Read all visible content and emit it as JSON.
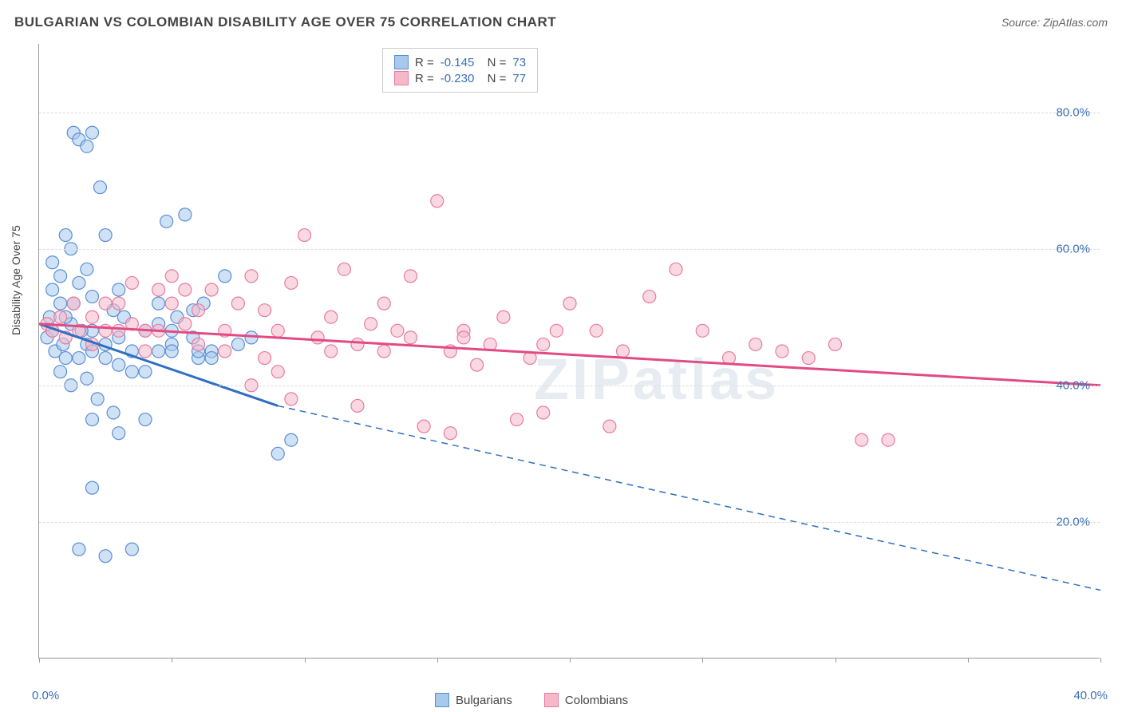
{
  "title": "BULGARIAN VS COLOMBIAN DISABILITY AGE OVER 75 CORRELATION CHART",
  "source": "Source: ZipAtlas.com",
  "watermark": "ZIPatlas",
  "chart": {
    "type": "scatter",
    "ylabel": "Disability Age Over 75",
    "xlim": [
      0,
      40
    ],
    "ylim": [
      0,
      90
    ],
    "yticks": [
      20,
      40,
      60,
      80
    ],
    "ytick_labels": [
      "20.0%",
      "40.0%",
      "60.0%",
      "80.0%"
    ],
    "xtick_positions": [
      0,
      5,
      10,
      15,
      20,
      25,
      30,
      35,
      40
    ],
    "x_axis_labels": {
      "left": "0.0%",
      "right": "40.0%"
    },
    "background_color": "#ffffff",
    "grid_color": "#dddddd",
    "axis_color": "#999999",
    "axis_label_color": "#3b6fb6",
    "marker_radius": 8,
    "marker_opacity": 0.55,
    "series": [
      {
        "name": "Bulgarians",
        "fill": "#a8c8ec",
        "stroke": "#5a8fd4",
        "line_color": "#2f6fc2",
        "R": "-0.145",
        "N": "73",
        "trend": {
          "x1": 0,
          "y1": 49,
          "x2_solid": 9,
          "y2_solid": 37,
          "x2": 40,
          "y2": 10
        },
        "points": [
          [
            0.3,
            47
          ],
          [
            0.4,
            50
          ],
          [
            0.5,
            48
          ],
          [
            0.6,
            45
          ],
          [
            0.8,
            52
          ],
          [
            0.9,
            46
          ],
          [
            1.0,
            44
          ],
          [
            1.2,
            49
          ],
          [
            1.3,
            77
          ],
          [
            1.5,
            76
          ],
          [
            1.8,
            75
          ],
          [
            2.0,
            77
          ],
          [
            1.0,
            62
          ],
          [
            2.3,
            69
          ],
          [
            2.8,
            51
          ],
          [
            3.0,
            47
          ],
          [
            1.5,
            55
          ],
          [
            2.0,
            53
          ],
          [
            2.5,
            44
          ],
          [
            3.2,
            50
          ],
          [
            3.5,
            42
          ],
          [
            4.0,
            48
          ],
          [
            4.5,
            45
          ],
          [
            5.0,
            46
          ],
          [
            1.8,
            41
          ],
          [
            2.2,
            38
          ],
          [
            2.8,
            36
          ],
          [
            5.5,
            65
          ],
          [
            5.8,
            51
          ],
          [
            6.0,
            44
          ],
          [
            6.5,
            45
          ],
          [
            7.0,
            56
          ],
          [
            0.5,
            54
          ],
          [
            0.8,
            42
          ],
          [
            1.2,
            40
          ],
          [
            1.5,
            44
          ],
          [
            1.8,
            46
          ],
          [
            2.0,
            48
          ],
          [
            2.5,
            46
          ],
          [
            3.0,
            43
          ],
          [
            3.5,
            45
          ],
          [
            4.0,
            42
          ],
          [
            1.2,
            60
          ],
          [
            1.8,
            57
          ],
          [
            2.5,
            62
          ],
          [
            3.0,
            54
          ],
          [
            4.5,
            52
          ],
          [
            5.0,
            48
          ],
          [
            1.5,
            16
          ],
          [
            2.5,
            15
          ],
          [
            3.5,
            16
          ],
          [
            2.0,
            25
          ],
          [
            4.5,
            49
          ],
          [
            5.2,
            50
          ],
          [
            5.8,
            47
          ],
          [
            6.5,
            44
          ],
          [
            2.0,
            35
          ],
          [
            3.0,
            33
          ],
          [
            4.0,
            35
          ],
          [
            5.0,
            45
          ],
          [
            6.0,
            45
          ],
          [
            9.0,
            30
          ],
          [
            9.5,
            32
          ],
          [
            8.0,
            47
          ],
          [
            0.5,
            58
          ],
          [
            0.8,
            56
          ],
          [
            1.0,
            50
          ],
          [
            1.3,
            52
          ],
          [
            1.6,
            48
          ],
          [
            4.8,
            64
          ],
          [
            6.2,
            52
          ],
          [
            7.5,
            46
          ],
          [
            2.0,
            45
          ]
        ]
      },
      {
        "name": "Colombians",
        "fill": "#f5b8c9",
        "stroke": "#e77ba0",
        "line_color": "#e24a84",
        "R": "-0.230",
        "N": "77",
        "trend": {
          "x1": 0,
          "y1": 49,
          "x2_solid": 40,
          "y2_solid": 40,
          "x2": 40,
          "y2": 40
        },
        "points": [
          [
            0.3,
            49
          ],
          [
            0.5,
            48
          ],
          [
            0.8,
            50
          ],
          [
            1.0,
            47
          ],
          [
            1.3,
            52
          ],
          [
            1.5,
            48
          ],
          [
            2.0,
            50
          ],
          [
            2.5,
            48
          ],
          [
            3.0,
            52
          ],
          [
            3.5,
            55
          ],
          [
            4.0,
            48
          ],
          [
            4.5,
            54
          ],
          [
            5.0,
            52
          ],
          [
            5.5,
            49
          ],
          [
            6.0,
            51
          ],
          [
            6.5,
            54
          ],
          [
            7.0,
            48
          ],
          [
            7.5,
            52
          ],
          [
            8.0,
            56
          ],
          [
            8.5,
            51
          ],
          [
            9.0,
            48
          ],
          [
            9.5,
            55
          ],
          [
            10.0,
            62
          ],
          [
            10.5,
            47
          ],
          [
            11.0,
            50
          ],
          [
            11.5,
            57
          ],
          [
            12.0,
            46
          ],
          [
            12.5,
            49
          ],
          [
            13.0,
            52
          ],
          [
            13.5,
            48
          ],
          [
            14.0,
            56
          ],
          [
            15.0,
            67
          ],
          [
            15.5,
            45
          ],
          [
            16.0,
            48
          ],
          [
            16.5,
            43
          ],
          [
            17.0,
            46
          ],
          [
            17.5,
            50
          ],
          [
            18.0,
            35
          ],
          [
            18.5,
            44
          ],
          [
            19.0,
            46
          ],
          [
            20.0,
            52
          ],
          [
            21.0,
            48
          ],
          [
            21.5,
            34
          ],
          [
            22.0,
            45
          ],
          [
            23.0,
            53
          ],
          [
            24.0,
            57
          ],
          [
            25.0,
            48
          ],
          [
            26.0,
            44
          ],
          [
            27.0,
            46
          ],
          [
            28.0,
            45
          ],
          [
            29.0,
            44
          ],
          [
            30.0,
            46
          ],
          [
            31.0,
            32
          ],
          [
            8.0,
            40
          ],
          [
            9.5,
            38
          ],
          [
            12.0,
            37
          ],
          [
            14.5,
            34
          ],
          [
            15.5,
            33
          ],
          [
            9.0,
            42
          ],
          [
            11.0,
            45
          ],
          [
            13.0,
            45
          ],
          [
            14.0,
            47
          ],
          [
            16.0,
            47
          ],
          [
            19.5,
            48
          ],
          [
            8.5,
            44
          ],
          [
            7.0,
            45
          ],
          [
            6.0,
            46
          ],
          [
            5.5,
            54
          ],
          [
            5.0,
            56
          ],
          [
            4.5,
            48
          ],
          [
            4.0,
            45
          ],
          [
            3.5,
            49
          ],
          [
            3.0,
            48
          ],
          [
            2.5,
            52
          ],
          [
            2.0,
            46
          ],
          [
            32.0,
            32
          ],
          [
            19.0,
            36
          ]
        ]
      }
    ]
  },
  "legend_bottom": [
    "Bulgarians",
    "Colombians"
  ]
}
